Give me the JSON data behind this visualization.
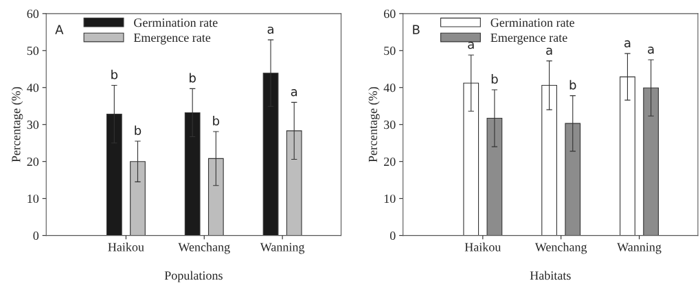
{
  "chart_data": [
    {
      "type": "bar",
      "title": "A",
      "xlabel": "Populations",
      "ylabel": "Percentage (%)",
      "categories": [
        "Haikou",
        "Wenchang",
        "Wanning"
      ],
      "ylim": [
        0,
        60
      ],
      "yticks": [
        0,
        10,
        20,
        30,
        40,
        50,
        60
      ],
      "legend": "top left",
      "series": [
        {
          "name": "Germination rate",
          "color": "#1a1a1a",
          "values": [
            32.8,
            33.2,
            43.9
          ],
          "errors": [
            7.8,
            6.5,
            9.0
          ],
          "value_labels": [
            "b",
            "b",
            "a"
          ]
        },
        {
          "name": "Emergence rate",
          "color": "#bdbdbd",
          "values": [
            20.0,
            20.8,
            28.3
          ],
          "errors": [
            5.5,
            7.3,
            7.7
          ],
          "value_labels": [
            "b",
            "b",
            "a"
          ]
        }
      ]
    },
    {
      "type": "bar",
      "title": "B",
      "xlabel": "Habitats",
      "ylabel": "Percentage (%)",
      "categories": [
        "Haikou",
        "Wenchang",
        "Wanning"
      ],
      "ylim": [
        0,
        60
      ],
      "yticks": [
        0,
        10,
        20,
        30,
        40,
        50,
        60
      ],
      "legend": "top left",
      "series": [
        {
          "name": "Germination rate",
          "color": "#ffffff",
          "values": [
            41.2,
            40.6,
            42.9
          ],
          "errors": [
            7.6,
            6.6,
            6.3
          ],
          "value_labels": [
            "a",
            "a",
            "a"
          ]
        },
        {
          "name": "Emergence rate",
          "color": "#8c8c8c",
          "values": [
            31.7,
            30.3,
            39.9
          ],
          "errors": [
            7.7,
            7.5,
            7.6
          ],
          "value_labels": [
            "b",
            "b",
            "a"
          ]
        }
      ]
    }
  ]
}
